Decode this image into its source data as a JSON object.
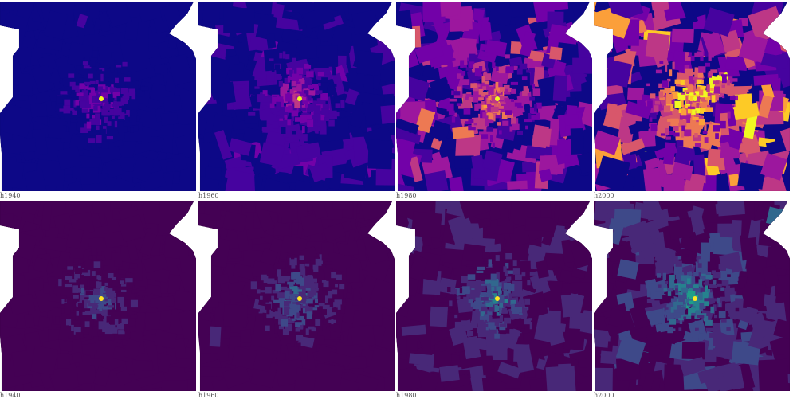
{
  "rows": [
    {
      "colormap": "plasma",
      "colors": [
        "#0d0887",
        "#46039f",
        "#7201a8",
        "#9c179e",
        "#bd3786",
        "#d8576b",
        "#ed7953",
        "#fb9f3a",
        "#fdca26",
        "#f0f921"
      ],
      "panels": [
        {
          "label": "h1940",
          "level": 0.08
        },
        {
          "label": "h1960",
          "level": 0.16
        },
        {
          "label": "h1980",
          "level": 0.42
        },
        {
          "label": "h2000",
          "level": 0.62
        }
      ]
    },
    {
      "colormap": "viridis",
      "colors": [
        "#440154",
        "#482878",
        "#3e4989",
        "#31688e",
        "#26828e",
        "#1f9e89",
        "#35b779",
        "#6ece58",
        "#b5de2b",
        "#fde725"
      ],
      "panels": [
        {
          "label": "h1940",
          "level": 0.05
        },
        {
          "label": "h1960",
          "level": 0.1
        },
        {
          "label": "h1980",
          "level": 0.17
        },
        {
          "label": "h2000",
          "level": 0.24
        }
      ]
    }
  ]
}
